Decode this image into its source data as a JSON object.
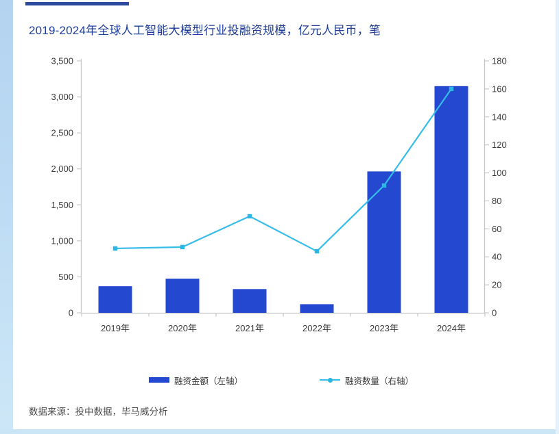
{
  "header": {
    "title": "2019-2024年全球人工智能大模型行业投融资规模，亿元人民币，笔"
  },
  "chart_data": {
    "type": "bar",
    "subtype": "combo-bar-line-dual-axis",
    "title": "2019-2024年全球人工智能大模型行业投融资规模，亿元人民币，笔",
    "categories": [
      "2019年",
      "2020年",
      "2021年",
      "2022年",
      "2023年",
      "2024年"
    ],
    "series": [
      {
        "name": "融资金额（左轴）",
        "type": "bar",
        "axis": "left",
        "values": [
          370,
          475,
          330,
          120,
          1965,
          3150
        ],
        "color": "#2448d0"
      },
      {
        "name": "融资数量（右轴）",
        "type": "line",
        "axis": "right",
        "values": [
          46,
          47,
          69,
          44,
          91,
          160
        ],
        "color": "#35bde8"
      }
    ],
    "left_axis": {
      "min": 0,
      "max": 3500,
      "step": 500,
      "tick_labels": [
        "0",
        "500",
        "1,000",
        "1,500",
        "2,000",
        "2,500",
        "3,000",
        "3,500"
      ]
    },
    "right_axis": {
      "min": 0,
      "max": 180,
      "step": 20,
      "tick_labels": [
        "0",
        "20",
        "40",
        "60",
        "80",
        "100",
        "120",
        "140",
        "160",
        "180"
      ]
    },
    "grid": false,
    "legend_position": "bottom"
  },
  "legend": {
    "bar_label": "融资金额（左轴）",
    "line_label": "融资数量（右轴）"
  },
  "footer": {
    "source": "数据来源：投中数据，毕马威分析"
  },
  "colors": {
    "bar": "#2448d0",
    "line": "#35bde8",
    "marker": "#2cb6e4",
    "title": "#1d3d96",
    "accent_bar": "#2a4aa0",
    "axis": "#c5c8cb",
    "tick_text": "#3a3a3a",
    "source_text": "#4c4c4c",
    "frame_left": "#b3d3f0",
    "frame_bottom": "#c9e5f6",
    "frame_right": "#e4f1fa"
  }
}
